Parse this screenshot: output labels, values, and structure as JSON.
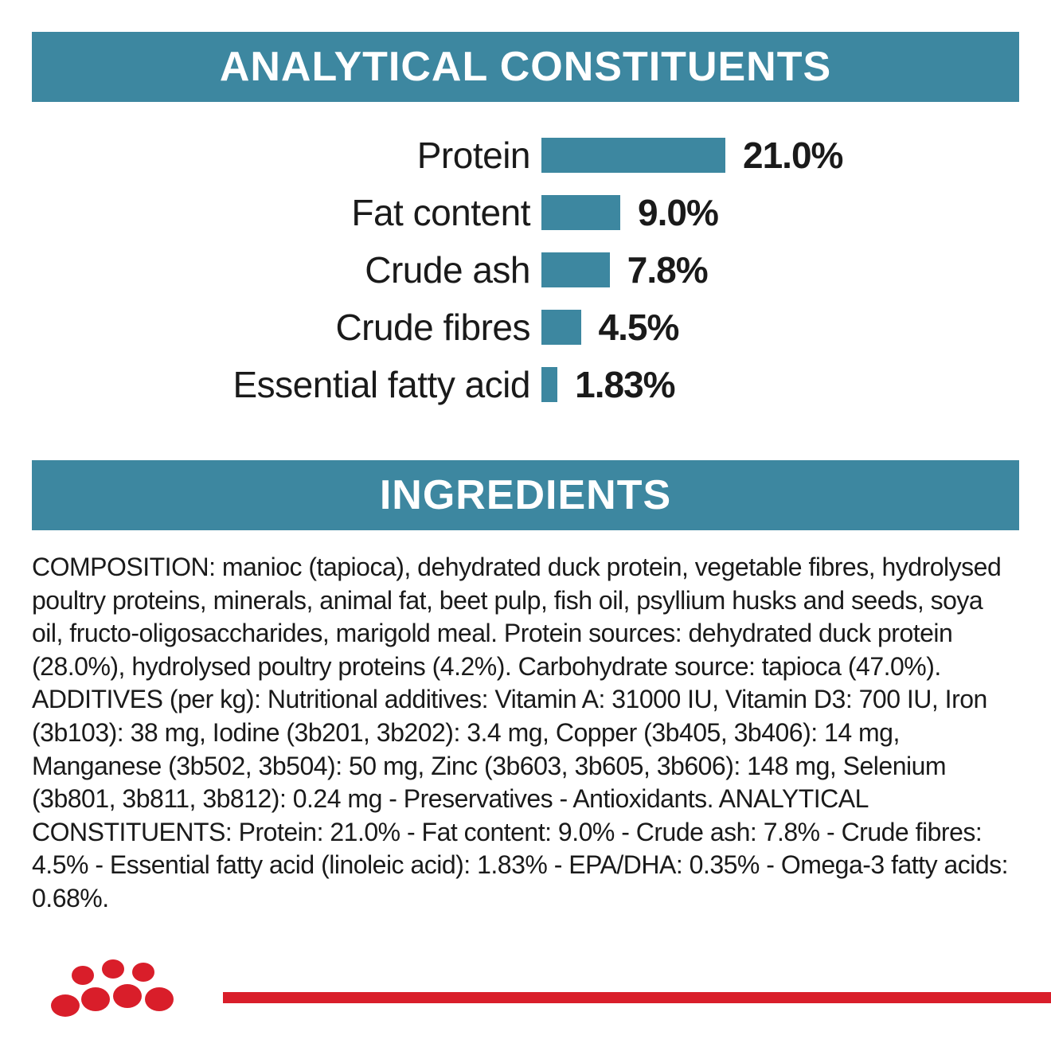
{
  "header1": "ANALYTICAL CONSTITUENTS",
  "header2": "INGREDIENTS",
  "bar_color": "#3d87a0",
  "text_color": "#1a1a1a",
  "chart": {
    "scale": 11,
    "rows": [
      {
        "label": "Protein",
        "value": 21.0,
        "display": "21.0%"
      },
      {
        "label": "Fat content",
        "value": 9.0,
        "display": "9.0%"
      },
      {
        "label": "Crude ash",
        "value": 7.8,
        "display": "7.8%"
      },
      {
        "label": "Crude fibres",
        "value": 4.5,
        "display": "4.5%"
      },
      {
        "label": "Essential fatty acid",
        "value": 1.83,
        "display": "1.83%"
      }
    ]
  },
  "ingredients": "COMPOSITION: manioc (tapioca), dehydrated duck protein, vegetable fibres, hydrolysed poultry proteins, minerals, animal fat, beet pulp, fish oil, psyllium husks and seeds, soya oil, fructo-oligosaccharides, marigold meal. Protein sources: dehydrated duck protein (28.0%), hydrolysed poultry proteins (4.2%). Carbohydrate source: tapioca (47.0%). ADDITIVES (per kg): Nutritional additives: Vitamin A: 31000 IU, Vitamin D3: 700 IU, Iron (3b103): 38 mg, Iodine (3b201, 3b202): 3.4 mg, Copper (3b405, 3b406): 14 mg, Manganese (3b502, 3b504): 50 mg, Zinc (3b603, 3b605, 3b606): 148 mg, Selenium (3b801, 3b811, 3b812): 0.24 mg - Preservatives - Antioxidants. ANALYTICAL CONSTITUENTS: Protein: 21.0% - Fat content: 9.0% - Crude ash: 7.8% - Crude fibres: 4.5% - Essential fatty acid (linoleic acid): 1.83% - EPA/DHA: 0.35% - Omega-3 fatty acids: 0.68%.",
  "logo_color": "#d91e2a"
}
